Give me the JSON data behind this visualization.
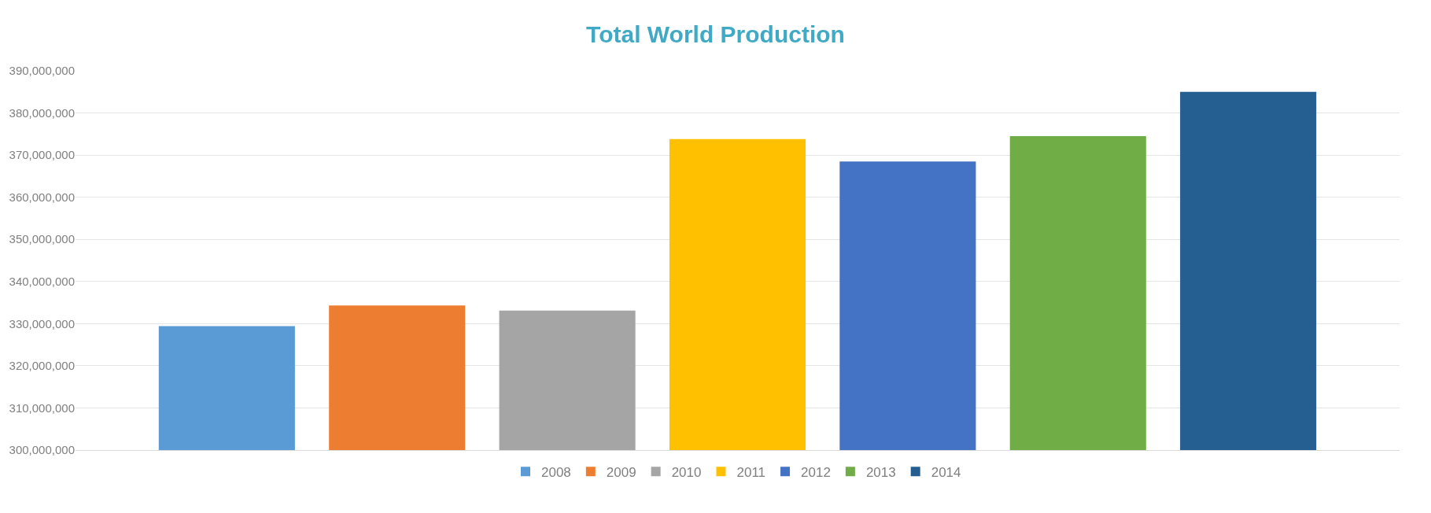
{
  "chart_data": {
    "type": "bar",
    "title": "Total World Production",
    "categories": [
      null
    ],
    "series": [
      {
        "name": "2008",
        "color": "#5b9bd5",
        "values": [
          329400000
        ]
      },
      {
        "name": "2009",
        "color": "#ed7d31",
        "values": [
          334300000
        ]
      },
      {
        "name": "2010",
        "color": "#a5a5a5",
        "values": [
          333100000
        ]
      },
      {
        "name": "2011",
        "color": "#ffc000",
        "values": [
          373800000
        ]
      },
      {
        "name": "2012",
        "color": "#4472c4",
        "values": [
          368500000
        ]
      },
      {
        "name": "2013",
        "color": "#70ad47",
        "values": [
          374500000
        ]
      },
      {
        "name": "2014",
        "color": "#255e91",
        "values": [
          385000000
        ]
      }
    ],
    "ylim": [
      300000000,
      390000000
    ],
    "yticks": [
      {
        "value": 300000000,
        "label": "300,000,000"
      },
      {
        "value": 310000000,
        "label": "310,000,000"
      },
      {
        "value": 320000000,
        "label": "320,000,000"
      },
      {
        "value": 330000000,
        "label": "330,000,000"
      },
      {
        "value": 340000000,
        "label": "340,000,000"
      },
      {
        "value": 350000000,
        "label": "350,000,000"
      },
      {
        "value": 360000000,
        "label": "360,000,000"
      },
      {
        "value": 370000000,
        "label": "370,000,000"
      },
      {
        "value": 380000000,
        "label": "380,000,000"
      },
      {
        "value": 390000000,
        "label": "390,000,000"
      }
    ],
    "grid": "y",
    "legend": "bottom",
    "tick_labels": "y"
  }
}
